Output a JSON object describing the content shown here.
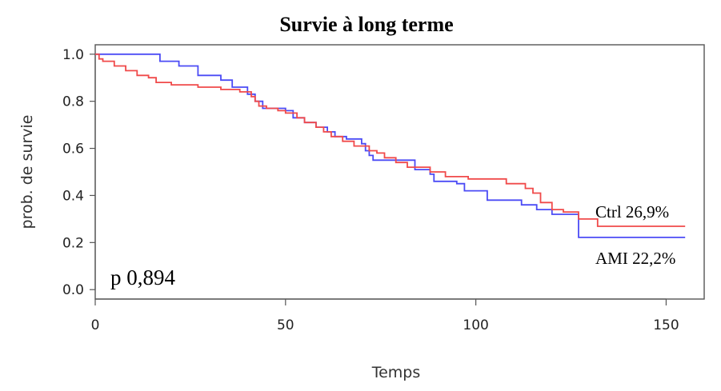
{
  "chart_data": {
    "type": "line",
    "title": "Survie à long terme",
    "xlabel": "Temps",
    "ylabel": "prob. de survie",
    "xlim": [
      0,
      160
    ],
    "ylim": [
      -0.04,
      1.04
    ],
    "xticks": [
      0,
      50,
      100,
      150
    ],
    "yticks": [
      0.0,
      0.2,
      0.4,
      0.6,
      0.8,
      1.0
    ],
    "xtick_labels": [
      "0",
      "50",
      "100",
      "150"
    ],
    "ytick_labels": [
      "0.0",
      "0.2",
      "0.4",
      "0.6",
      "0.8",
      "1.0"
    ],
    "grid": false,
    "series": [
      {
        "name": "Ctrl",
        "color": "#f04a4a",
        "end_label": "Ctrl 26,9%",
        "x": [
          0,
          1,
          2,
          5,
          8,
          11,
          14,
          16,
          20,
          27,
          33,
          38,
          41,
          42,
          43,
          45,
          48,
          50,
          53,
          55,
          58,
          60,
          62,
          65,
          68,
          72,
          74,
          76,
          79,
          82,
          88,
          92,
          98,
          108,
          113,
          115,
          117,
          120,
          123,
          127,
          132,
          155
        ],
        "y": [
          1.0,
          0.98,
          0.97,
          0.95,
          0.93,
          0.91,
          0.9,
          0.88,
          0.87,
          0.86,
          0.85,
          0.84,
          0.82,
          0.8,
          0.78,
          0.77,
          0.76,
          0.75,
          0.73,
          0.71,
          0.69,
          0.67,
          0.65,
          0.63,
          0.61,
          0.59,
          0.58,
          0.56,
          0.54,
          0.52,
          0.5,
          0.48,
          0.47,
          0.45,
          0.43,
          0.41,
          0.37,
          0.34,
          0.33,
          0.3,
          0.269,
          0.269
        ]
      },
      {
        "name": "AMI",
        "color": "#4b4bf5",
        "end_label": "AMI 22,2%",
        "x": [
          0,
          17,
          22,
          27,
          33,
          36,
          40,
          42,
          44,
          45,
          50,
          52,
          55,
          58,
          61,
          63,
          66,
          70,
          71,
          72,
          73,
          74,
          76,
          84,
          88,
          89,
          95,
          97,
          103,
          109,
          112,
          116,
          120,
          127,
          155
        ],
        "y": [
          1.0,
          0.97,
          0.95,
          0.91,
          0.89,
          0.86,
          0.83,
          0.8,
          0.77,
          0.77,
          0.76,
          0.73,
          0.71,
          0.69,
          0.67,
          0.65,
          0.64,
          0.62,
          0.59,
          0.57,
          0.55,
          0.55,
          0.55,
          0.51,
          0.49,
          0.46,
          0.45,
          0.42,
          0.38,
          0.38,
          0.36,
          0.34,
          0.32,
          0.222,
          0.222
        ]
      }
    ],
    "annotations": [
      {
        "text": "p 0,894"
      }
    ]
  }
}
